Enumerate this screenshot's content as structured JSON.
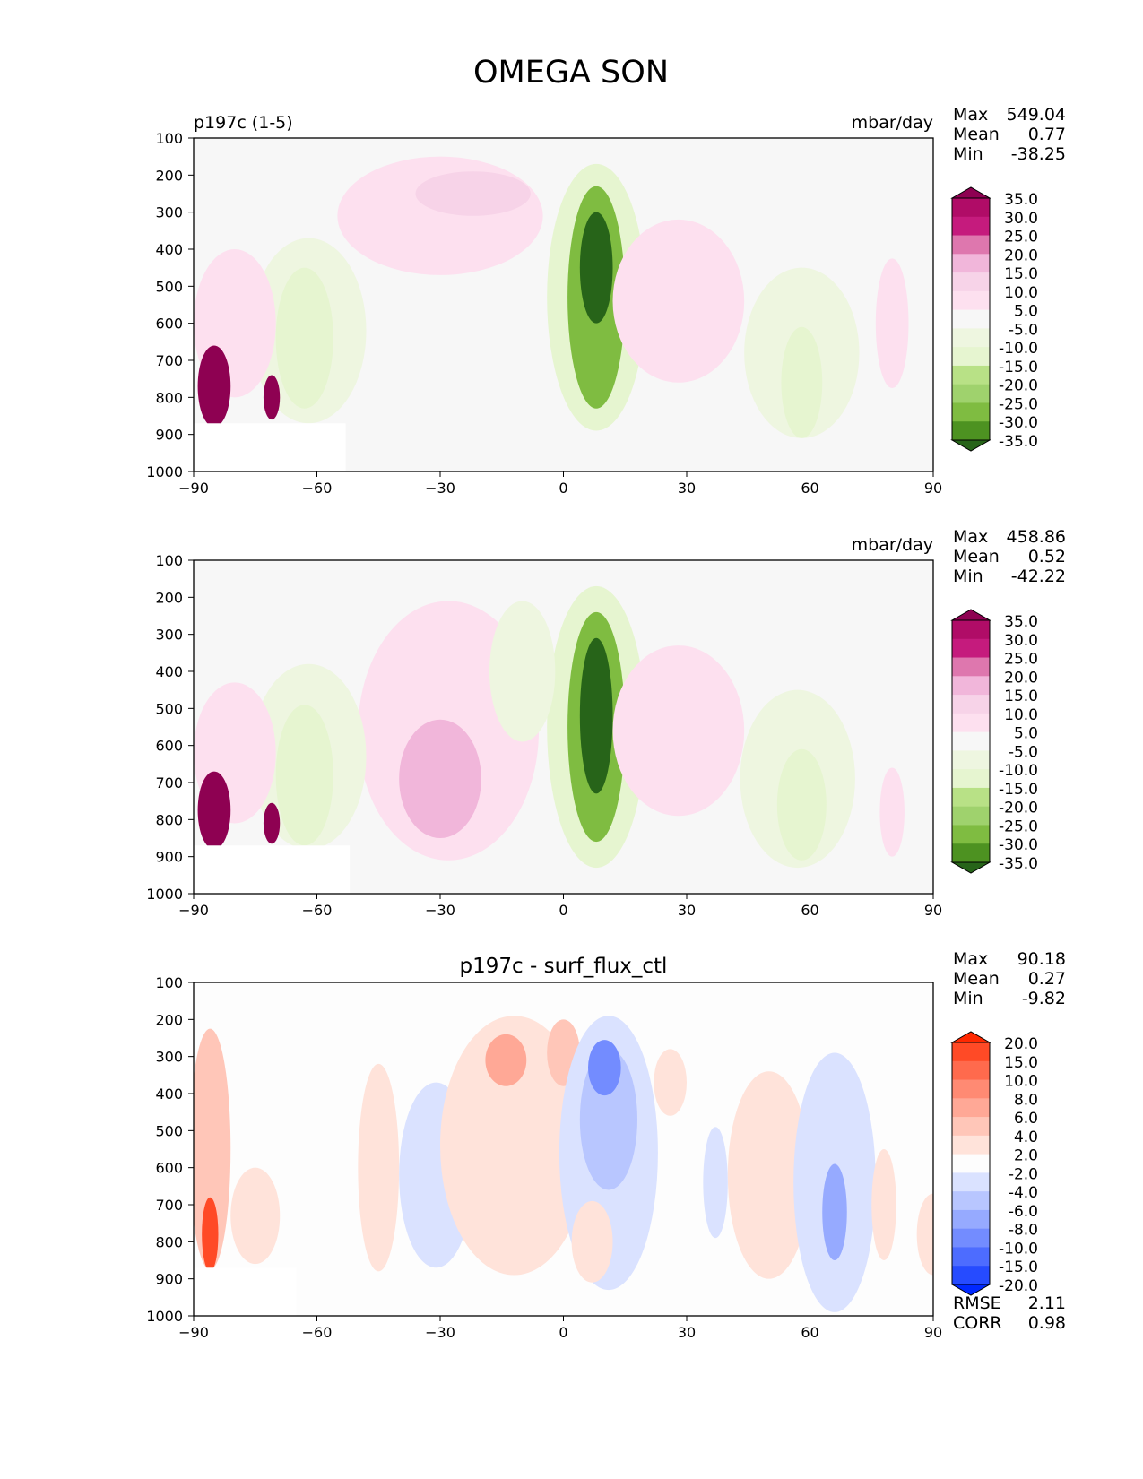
{
  "figure": {
    "title": "OMEGA SON"
  },
  "chart_data": [
    {
      "type": "heatmap",
      "panel": "model",
      "left_title": "p197c (1-5)",
      "center_title": "",
      "units": "mbar/day",
      "stats": [
        {
          "label": "Max",
          "value": "549.04"
        },
        {
          "label": "Mean",
          "value": "0.77"
        },
        {
          "label": "Min",
          "value": "-38.25"
        }
      ],
      "x_ticks": [
        "−90",
        "−60",
        "−30",
        "0",
        "30",
        "60",
        "90"
      ],
      "y_ticks": [
        "100",
        "200",
        "300",
        "400",
        "500",
        "600",
        "700",
        "800",
        "900",
        "1000"
      ],
      "xlim": [
        -90,
        90
      ],
      "ylim": [
        1000,
        100
      ],
      "colorbar": {
        "labels": [
          "35.0",
          "30.0",
          "25.0",
          "20.0",
          "15.0",
          "10.0",
          "5.0",
          "-5.0",
          "-10.0",
          "-15.0",
          "-20.0",
          "-25.0",
          "-30.0",
          "-35.0"
        ],
        "colors": [
          "#8e0152",
          "#b00c67",
          "#c51b7d",
          "#de77ae",
          "#f1b6da",
          "#f7d3e8",
          "#fde0ef",
          "#f7f7f7",
          "#eef6e0",
          "#e6f5d0",
          "#b8e186",
          "#9fd26d",
          "#7fbc41",
          "#4d9221",
          "#276419"
        ]
      },
      "features": [
        {
          "x": -30,
          "p": 310,
          "w": 25,
          "h": 320,
          "value": 8
        },
        {
          "x": -22,
          "p": 250,
          "w": 14,
          "h": 120,
          "value": 10
        },
        {
          "x": 8,
          "p": 530,
          "w": 12,
          "h": 720,
          "value": -15
        },
        {
          "x": 8,
          "p": 530,
          "w": 7,
          "h": 600,
          "value": -30
        },
        {
          "x": 8,
          "p": 450,
          "w": 4,
          "h": 300,
          "value": -40
        },
        {
          "x": 28,
          "p": 540,
          "w": 16,
          "h": 440,
          "value": 8
        },
        {
          "x": -62,
          "p": 620,
          "w": 14,
          "h": 500,
          "value": -8
        },
        {
          "x": -63,
          "p": 640,
          "w": 7,
          "h": 380,
          "value": -15
        },
        {
          "x": 58,
          "p": 680,
          "w": 14,
          "h": 460,
          "value": -8
        },
        {
          "x": 58,
          "p": 760,
          "w": 5,
          "h": 300,
          "value": -15
        },
        {
          "x": -80,
          "p": 600,
          "w": 10,
          "h": 400,
          "value": 8
        },
        {
          "x": -85,
          "p": 770,
          "w": 4,
          "h": 220,
          "value": 40
        },
        {
          "x": -71,
          "p": 800,
          "w": 2,
          "h": 120,
          "value": 40
        },
        {
          "x": 80,
          "p": 600,
          "w": 4,
          "h": 350,
          "value": 8
        }
      ]
    },
    {
      "type": "heatmap",
      "panel": "reference",
      "left_title": "",
      "center_title": "",
      "units": "mbar/day",
      "stats": [
        {
          "label": "Max",
          "value": "458.86"
        },
        {
          "label": "Mean",
          "value": "0.52"
        },
        {
          "label": "Min",
          "value": "-42.22"
        }
      ],
      "x_ticks": [
        "−90",
        "−60",
        "−30",
        "0",
        "30",
        "60",
        "90"
      ],
      "y_ticks": [
        "100",
        "200",
        "300",
        "400",
        "500",
        "600",
        "700",
        "800",
        "900",
        "1000"
      ],
      "xlim": [
        -90,
        90
      ],
      "ylim": [
        1000,
        100
      ],
      "colorbar": {
        "labels": [
          "35.0",
          "30.0",
          "25.0",
          "20.0",
          "15.0",
          "10.0",
          "5.0",
          "-5.0",
          "-10.0",
          "-15.0",
          "-20.0",
          "-25.0",
          "-30.0",
          "-35.0"
        ],
        "colors": [
          "#8e0152",
          "#b00c67",
          "#c51b7d",
          "#de77ae",
          "#f1b6da",
          "#f7d3e8",
          "#fde0ef",
          "#f7f7f7",
          "#eef6e0",
          "#e6f5d0",
          "#b8e186",
          "#9fd26d",
          "#7fbc41",
          "#4d9221",
          "#276419"
        ]
      },
      "features": [
        {
          "x": -28,
          "p": 560,
          "w": 22,
          "h": 700,
          "value": 8
        },
        {
          "x": -30,
          "p": 690,
          "w": 10,
          "h": 320,
          "value": 18
        },
        {
          "x": 8,
          "p": 550,
          "w": 12,
          "h": 760,
          "value": -15
        },
        {
          "x": 8,
          "p": 550,
          "w": 7,
          "h": 620,
          "value": -30
        },
        {
          "x": 8,
          "p": 520,
          "w": 4,
          "h": 420,
          "value": -40
        },
        {
          "x": 28,
          "p": 560,
          "w": 16,
          "h": 460,
          "value": 8
        },
        {
          "x": -10,
          "p": 400,
          "w": 8,
          "h": 380,
          "value": -6
        },
        {
          "x": -62,
          "p": 630,
          "w": 14,
          "h": 500,
          "value": -8
        },
        {
          "x": -63,
          "p": 680,
          "w": 7,
          "h": 380,
          "value": -15
        },
        {
          "x": 57,
          "p": 690,
          "w": 14,
          "h": 480,
          "value": -8
        },
        {
          "x": 58,
          "p": 760,
          "w": 6,
          "h": 300,
          "value": -15
        },
        {
          "x": -80,
          "p": 620,
          "w": 10,
          "h": 380,
          "value": 8
        },
        {
          "x": -85,
          "p": 775,
          "w": 4,
          "h": 210,
          "value": 40
        },
        {
          "x": -71,
          "p": 810,
          "w": 2,
          "h": 110,
          "value": 40
        },
        {
          "x": 80,
          "p": 780,
          "w": 3,
          "h": 240,
          "value": 8
        }
      ]
    },
    {
      "type": "heatmap",
      "panel": "difference",
      "left_title": "",
      "center_title": "p197c - surf_flux_ctl",
      "units": "",
      "stats": [
        {
          "label": "Max",
          "value": "90.18"
        },
        {
          "label": "Mean",
          "value": "0.27"
        },
        {
          "label": "Min",
          "value": "-9.82"
        }
      ],
      "footer_stats": [
        {
          "label": "RMSE",
          "value": "2.11"
        },
        {
          "label": "CORR",
          "value": "0.98"
        }
      ],
      "x_ticks": [
        "−90",
        "−60",
        "−30",
        "0",
        "30",
        "60",
        "90"
      ],
      "y_ticks": [
        "100",
        "200",
        "300",
        "400",
        "500",
        "600",
        "700",
        "800",
        "900",
        "1000"
      ],
      "xlim": [
        -90,
        90
      ],
      "ylim": [
        1000,
        100
      ],
      "colorbar": {
        "labels": [
          "20.0",
          "15.0",
          "10.0",
          "8.0",
          "6.0",
          "4.0",
          "2.0",
          "-2.0",
          "-4.0",
          "-6.0",
          "-8.0",
          "-10.0",
          "-15.0",
          "-20.0"
        ],
        "colors": [
          "#ff2800",
          "#ff4a26",
          "#ff6a4d",
          "#ff8a73",
          "#ffa896",
          "#ffc6b8",
          "#ffe3da",
          "#fdfdfd",
          "#dae2ff",
          "#b8c6ff",
          "#96aaff",
          "#738cff",
          "#4d6cff",
          "#264bff",
          "#0028ff"
        ]
      },
      "features": [
        {
          "x": -86,
          "p": 550,
          "w": 5,
          "h": 650,
          "value": 5
        },
        {
          "x": -86,
          "p": 780,
          "w": 2,
          "h": 200,
          "value": 15
        },
        {
          "x": -75,
          "p": 730,
          "w": 6,
          "h": 260,
          "value": 3
        },
        {
          "x": -45,
          "p": 600,
          "w": 5,
          "h": 560,
          "value": 3
        },
        {
          "x": -31,
          "p": 620,
          "w": 9,
          "h": 500,
          "value": -3
        },
        {
          "x": -12,
          "p": 540,
          "w": 18,
          "h": 700,
          "value": 3
        },
        {
          "x": -14,
          "p": 310,
          "w": 5,
          "h": 140,
          "value": 6
        },
        {
          "x": 0,
          "p": 290,
          "w": 4,
          "h": 180,
          "value": 4
        },
        {
          "x": 11,
          "p": 560,
          "w": 12,
          "h": 740,
          "value": -3
        },
        {
          "x": 11,
          "p": 470,
          "w": 7,
          "h": 380,
          "value": -6
        },
        {
          "x": 10,
          "p": 330,
          "w": 4,
          "h": 150,
          "value": -10
        },
        {
          "x": 7,
          "p": 800,
          "w": 5,
          "h": 220,
          "value": 3
        },
        {
          "x": 26,
          "p": 370,
          "w": 4,
          "h": 180,
          "value": 3
        },
        {
          "x": 37,
          "p": 640,
          "w": 3,
          "h": 300,
          "value": -3
        },
        {
          "x": 50,
          "p": 620,
          "w": 10,
          "h": 560,
          "value": 3
        },
        {
          "x": 66,
          "p": 640,
          "w": 10,
          "h": 700,
          "value": -3
        },
        {
          "x": 66,
          "p": 720,
          "w": 3,
          "h": 260,
          "value": -8
        },
        {
          "x": 78,
          "p": 700,
          "w": 3,
          "h": 300,
          "value": 3
        },
        {
          "x": 90,
          "p": 780,
          "w": 4,
          "h": 220,
          "value": 3
        }
      ]
    }
  ]
}
